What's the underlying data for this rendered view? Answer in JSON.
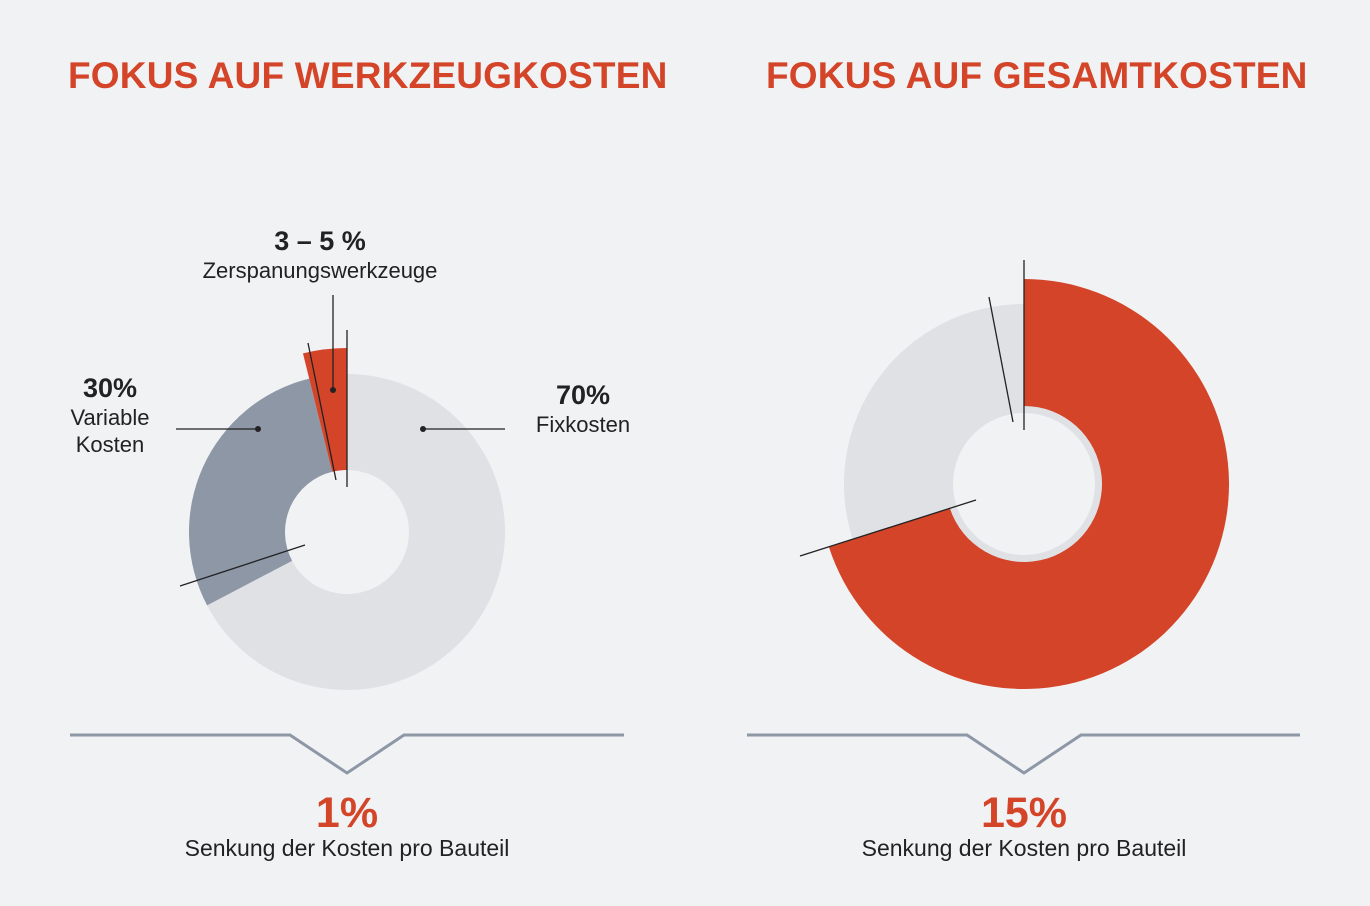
{
  "colors": {
    "accent": "#d34428",
    "fixed": "#dfe1e5",
    "variable": "#8e97a6",
    "bracket": "#8e97a6",
    "background": "#f1f2f4"
  },
  "left": {
    "title": "FOKUS AUF WERKZEUGKOSTEN",
    "labels": {
      "tools_pct": "3 – 5 %",
      "tools_name": "Zerspanungswerkzeuge",
      "variable_pct": "30%",
      "variable_name_1": "Variable",
      "variable_name_2": "Kosten",
      "fixed_pct": "70%",
      "fixed_name": "Fixkosten"
    },
    "result_value": "1%",
    "result_label": "Senkung der Kosten pro Bauteil"
  },
  "right": {
    "title": "FOKUS AUF GESAMTKOSTEN",
    "result_value": "15%",
    "result_label": "Senkung der Kosten pro Bauteil"
  },
  "chart_data": [
    {
      "type": "pie",
      "title": "FOKUS AUF WERKZEUGKOSTEN",
      "slices": [
        {
          "label": "Zerspanungswerkzeuge",
          "value_text": "3 – 5 %",
          "value": 4,
          "color": "#d34428"
        },
        {
          "label": "Fixkosten",
          "value_text": "70%",
          "value": 70,
          "color": "#dfe1e5"
        },
        {
          "label": "Variable Kosten",
          "value_text": "30%",
          "value": 30,
          "color": "#8e97a6"
        }
      ],
      "result": "1%",
      "result_label": "Senkung der Kosten pro Bauteil"
    },
    {
      "type": "pie",
      "title": "FOKUS AUF GESAMTKOSTEN",
      "slices": [
        {
          "label": "",
          "value": 70,
          "color": "#d34428"
        },
        {
          "label": "",
          "value": 30,
          "color": "#dfe1e5"
        }
      ],
      "result": "15%",
      "result_label": "Senkung der Kosten pro Bauteil"
    }
  ]
}
